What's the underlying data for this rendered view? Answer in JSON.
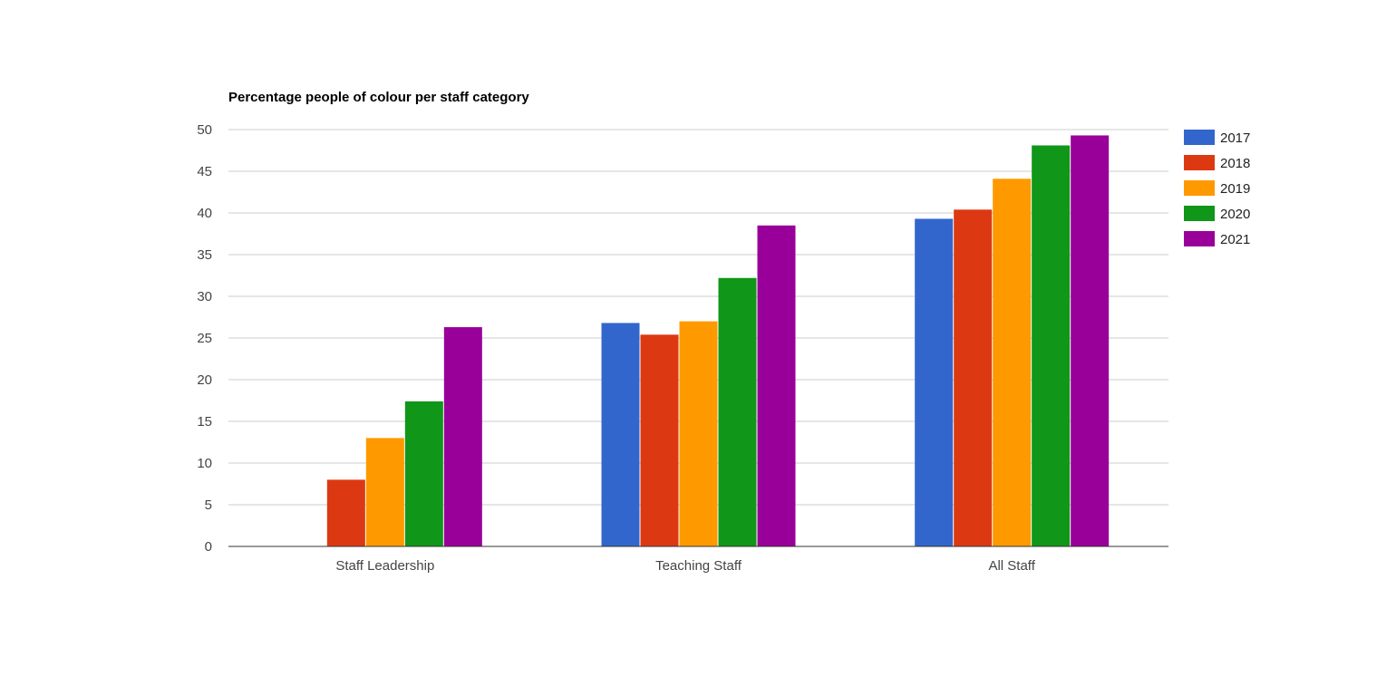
{
  "chart_data": {
    "type": "bar",
    "title": "Percentage people of colour per staff category",
    "xlabel": "",
    "ylabel": "",
    "categories": [
      "Staff Leadership",
      "Teaching Staff",
      "All Staff"
    ],
    "series": [
      {
        "name": "2017",
        "color": "#3366cc",
        "values": [
          0,
          26.8,
          39.3
        ]
      },
      {
        "name": "2018",
        "color": "#dc3912",
        "values": [
          8,
          25.4,
          40.4
        ]
      },
      {
        "name": "2019",
        "color": "#ff9900",
        "values": [
          13,
          27,
          44.1
        ]
      },
      {
        "name": "2020",
        "color": "#109618",
        "values": [
          17.4,
          32.2,
          48.1
        ]
      },
      {
        "name": "2021",
        "color": "#990099",
        "values": [
          26.3,
          38.5,
          49.3
        ]
      }
    ],
    "ylim": [
      0,
      50
    ],
    "yticks": [
      "0",
      "5",
      "10",
      "15",
      "20",
      "25",
      "30",
      "35",
      "40",
      "45",
      "50"
    ],
    "grid": true,
    "legend_position": "right"
  }
}
